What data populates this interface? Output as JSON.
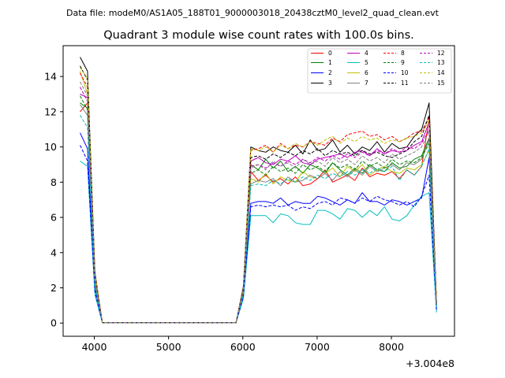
{
  "file_label": "Data file: modeM0/AS1A05_188T01_9000003018_20438cztM0_level2_quad_clean.evt",
  "chart_data": {
    "type": "line",
    "title": "Quadrant 3 module wise count rates with 100.0s bins.",
    "xlabel": "",
    "ylabel": "",
    "x_offset_label": "+3.004e8",
    "xlim": [
      3580,
      8850
    ],
    "ylim": [
      -0.75,
      15.75
    ],
    "x_ticks": [
      4000,
      5000,
      6000,
      7000,
      8000
    ],
    "y_ticks": [
      0,
      2,
      4,
      6,
      8,
      10,
      12,
      14
    ],
    "grid": false,
    "legend_position": "top-right",
    "x": [
      3808,
      3908,
      4008,
      4108,
      4208,
      4308,
      4408,
      4508,
      4608,
      4708,
      4808,
      4908,
      5008,
      5108,
      5208,
      5308,
      5408,
      5508,
      5608,
      5708,
      5808,
      5908,
      6008,
      6108,
      6208,
      6308,
      6408,
      6508,
      6608,
      6708,
      6808,
      6908,
      7008,
      7108,
      7208,
      7308,
      7408,
      7508,
      7608,
      7708,
      7808,
      7908,
      8008,
      8108,
      8208,
      8308,
      8408,
      8508,
      8608
    ],
    "series": [
      {
        "name": "0",
        "color": "#ff0000",
        "dash": "solid",
        "values": [
          12.0,
          12.5,
          2.6,
          0.02,
          0.02,
          0.02,
          0.02,
          0.02,
          0.02,
          0.02,
          0.02,
          0.02,
          0.02,
          0.02,
          0.02,
          0.02,
          0.02,
          0.02,
          0.02,
          0.02,
          0.02,
          0.02,
          1.8,
          8.6,
          8.1,
          8.4,
          8.0,
          8.2,
          7.9,
          8.3,
          7.8,
          7.9,
          8.2,
          8.7,
          8.0,
          8.2,
          8.4,
          8.1,
          8.8,
          8.3,
          8.5,
          8.4,
          8.6,
          8.2,
          8.7,
          8.4,
          8.9,
          11.6,
          1.1
        ]
      },
      {
        "name": "1",
        "color": "#008000",
        "dash": "solid",
        "values": [
          12.5,
          12.2,
          2.4,
          0.02,
          0.02,
          0.02,
          0.02,
          0.02,
          0.02,
          0.02,
          0.02,
          0.02,
          0.02,
          0.02,
          0.02,
          0.02,
          0.02,
          0.02,
          0.02,
          0.02,
          0.02,
          0.02,
          1.9,
          9.0,
          8.7,
          9.3,
          8.8,
          9.2,
          8.6,
          8.9,
          8.5,
          9.0,
          8.8,
          8.5,
          9.1,
          8.7,
          8.4,
          8.8,
          8.5,
          9.0,
          8.7,
          8.6,
          9.1,
          8.8,
          8.9,
          9.3,
          9.5,
          10.5,
          1.0
        ]
      },
      {
        "name": "2",
        "color": "#0000ff",
        "dash": "solid",
        "values": [
          10.8,
          9.9,
          2.0,
          0.02,
          0.02,
          0.02,
          0.02,
          0.02,
          0.02,
          0.02,
          0.02,
          0.02,
          0.02,
          0.02,
          0.02,
          0.02,
          0.02,
          0.02,
          0.02,
          0.02,
          0.02,
          0.02,
          1.6,
          6.8,
          6.9,
          6.9,
          6.8,
          7.1,
          6.7,
          6.9,
          6.8,
          6.8,
          7.2,
          7.1,
          6.9,
          6.7,
          7.0,
          6.8,
          7.4,
          6.9,
          6.9,
          6.7,
          7.0,
          6.9,
          6.7,
          6.9,
          7.1,
          9.4,
          0.8
        ]
      },
      {
        "name": "3",
        "color": "#000000",
        "dash": "solid",
        "values": [
          15.1,
          14.3,
          2.9,
          0.02,
          0.02,
          0.02,
          0.02,
          0.02,
          0.02,
          0.02,
          0.02,
          0.02,
          0.02,
          0.02,
          0.02,
          0.02,
          0.02,
          0.02,
          0.02,
          0.02,
          0.02,
          0.02,
          2.1,
          10.0,
          9.8,
          9.7,
          10.0,
          9.8,
          9.7,
          10.1,
          9.6,
          10.4,
          9.8,
          9.9,
          10.4,
          9.7,
          10.1,
          9.6,
          10.0,
          9.8,
          10.3,
          9.7,
          10.2,
          9.9,
          10.0,
          10.6,
          11.0,
          12.5,
          1.2
        ]
      },
      {
        "name": "4",
        "color": "#bf00bf",
        "dash": "solid",
        "values": [
          13.0,
          12.8,
          2.7,
          0.02,
          0.02,
          0.02,
          0.02,
          0.02,
          0.02,
          0.02,
          0.02,
          0.02,
          0.02,
          0.02,
          0.02,
          0.02,
          0.02,
          0.02,
          0.02,
          0.02,
          0.02,
          0.02,
          2.0,
          9.2,
          9.4,
          9.1,
          9.0,
          9.3,
          9.2,
          9.5,
          9.1,
          9.0,
          9.3,
          9.4,
          9.5,
          9.6,
          9.4,
          9.7,
          9.8,
          9.5,
          9.9,
          9.6,
          9.8,
          9.7,
          9.8,
          10.1,
          10.3,
          11.4,
          1.1
        ]
      },
      {
        "name": "5",
        "color": "#00bfbf",
        "dash": "solid",
        "values": [
          9.2,
          8.9,
          1.6,
          0.02,
          0.02,
          0.02,
          0.02,
          0.02,
          0.02,
          0.02,
          0.02,
          0.02,
          0.02,
          0.02,
          0.02,
          0.02,
          0.02,
          0.02,
          0.02,
          0.02,
          0.02,
          0.02,
          1.4,
          6.1,
          6.1,
          6.1,
          5.7,
          6.2,
          6.1,
          5.7,
          5.6,
          5.6,
          6.4,
          6.4,
          6.2,
          5.9,
          6.5,
          6.4,
          6.0,
          6.4,
          6.1,
          6.6,
          5.9,
          5.8,
          6.1,
          6.7,
          7.2,
          7.4,
          0.6
        ]
      },
      {
        "name": "6",
        "color": "#bfbf00",
        "dash": "solid",
        "values": [
          14.3,
          13.0,
          2.5,
          0.02,
          0.02,
          0.02,
          0.02,
          0.02,
          0.02,
          0.02,
          0.02,
          0.02,
          0.02,
          0.02,
          0.02,
          0.02,
          0.02,
          0.02,
          0.02,
          0.02,
          0.02,
          0.02,
          1.9,
          8.2,
          8.0,
          8.5,
          7.9,
          8.3,
          8.1,
          8.0,
          8.6,
          8.3,
          8.2,
          8.5,
          8.8,
          8.3,
          8.9,
          8.6,
          9.0,
          8.4,
          8.7,
          8.9,
          8.6,
          8.5,
          8.8,
          8.7,
          9.0,
          9.8,
          1.0
        ]
      },
      {
        "name": "7",
        "color": "#808080",
        "dash": "solid",
        "values": [
          12.4,
          11.8,
          2.2,
          0.02,
          0.02,
          0.02,
          0.02,
          0.02,
          0.02,
          0.02,
          0.02,
          0.02,
          0.02,
          0.02,
          0.02,
          0.02,
          0.02,
          0.02,
          0.02,
          0.02,
          0.02,
          0.02,
          1.7,
          7.9,
          8.1,
          8.0,
          8.2,
          7.8,
          8.3,
          8.0,
          8.1,
          8.4,
          8.2,
          8.5,
          8.1,
          8.6,
          8.3,
          8.7,
          8.4,
          8.9,
          8.6,
          8.8,
          9.0,
          8.7,
          9.1,
          9.0,
          9.3,
          10.4,
          0.9
        ]
      },
      {
        "name": "8",
        "color": "#ff0000",
        "dash": "dashed",
        "values": [
          14.2,
          13.4,
          2.8,
          0.02,
          0.02,
          0.02,
          0.02,
          0.02,
          0.02,
          0.02,
          0.02,
          0.02,
          0.02,
          0.02,
          0.02,
          0.02,
          0.02,
          0.02,
          0.02,
          0.02,
          0.02,
          0.02,
          2.0,
          9.8,
          9.9,
          10.1,
          9.7,
          10.2,
          9.9,
          10.1,
          10.0,
          10.3,
          10.2,
          10.1,
          10.5,
          10.3,
          10.7,
          10.8,
          10.9,
          10.6,
          10.7,
          10.4,
          10.6,
          10.3,
          10.5,
          10.8,
          10.9,
          11.7,
          1.2
        ]
      },
      {
        "name": "9",
        "color": "#008000",
        "dash": "dashed",
        "values": [
          12.9,
          12.1,
          2.4,
          0.02,
          0.02,
          0.02,
          0.02,
          0.02,
          0.02,
          0.02,
          0.02,
          0.02,
          0.02,
          0.02,
          0.02,
          0.02,
          0.02,
          0.02,
          0.02,
          0.02,
          0.02,
          0.02,
          1.8,
          8.5,
          8.7,
          8.4,
          8.9,
          8.6,
          8.8,
          8.5,
          9.0,
          8.7,
          8.9,
          8.6,
          9.1,
          8.8,
          9.0,
          8.7,
          9.2,
          8.9,
          9.1,
          8.8,
          9.3,
          9.0,
          9.2,
          9.1,
          9.4,
          10.2,
          1.0
        ]
      },
      {
        "name": "10",
        "color": "#0000ff",
        "dash": "dashed",
        "values": [
          10.1,
          9.2,
          1.8,
          0.02,
          0.02,
          0.02,
          0.02,
          0.02,
          0.02,
          0.02,
          0.02,
          0.02,
          0.02,
          0.02,
          0.02,
          0.02,
          0.02,
          0.02,
          0.02,
          0.02,
          0.02,
          0.02,
          1.5,
          6.6,
          6.7,
          6.6,
          6.7,
          6.6,
          6.7,
          6.4,
          6.6,
          6.5,
          6.8,
          6.9,
          6.7,
          7.1,
          7.0,
          6.8,
          7.1,
          6.9,
          7.2,
          7.0,
          6.9,
          6.7,
          6.9,
          6.6,
          7.2,
          8.4,
          0.7
        ]
      },
      {
        "name": "11",
        "color": "#000000",
        "dash": "dashed",
        "values": [
          14.6,
          13.8,
          2.7,
          0.02,
          0.02,
          0.02,
          0.02,
          0.02,
          0.02,
          0.02,
          0.02,
          0.02,
          0.02,
          0.02,
          0.02,
          0.02,
          0.02,
          0.02,
          0.02,
          0.02,
          0.02,
          0.02,
          2.0,
          9.4,
          9.5,
          9.3,
          9.6,
          9.4,
          9.7,
          9.5,
          9.8,
          9.6,
          9.9,
          9.5,
          9.8,
          9.6,
          9.7,
          9.5,
          9.8,
          9.6,
          9.7,
          9.5,
          9.4,
          9.6,
          9.8,
          10.3,
          10.6,
          11.8,
          1.1
        ]
      },
      {
        "name": "12",
        "color": "#bf00bf",
        "dash": "dashed",
        "values": [
          13.4,
          12.6,
          2.6,
          0.02,
          0.02,
          0.02,
          0.02,
          0.02,
          0.02,
          0.02,
          0.02,
          0.02,
          0.02,
          0.02,
          0.02,
          0.02,
          0.02,
          0.02,
          0.02,
          0.02,
          0.02,
          0.02,
          1.9,
          8.9,
          9.0,
          8.8,
          9.1,
          8.9,
          9.2,
          9.0,
          9.3,
          9.1,
          9.4,
          9.2,
          9.5,
          9.3,
          9.6,
          9.4,
          9.7,
          9.5,
          9.8,
          9.6,
          9.9,
          9.7,
          10.0,
          9.9,
          10.2,
          11.0,
          1.0
        ]
      },
      {
        "name": "13",
        "color": "#00bfbf",
        "dash": "dashed",
        "values": [
          11.8,
          11.1,
          2.1,
          0.02,
          0.02,
          0.02,
          0.02,
          0.02,
          0.02,
          0.02,
          0.02,
          0.02,
          0.02,
          0.02,
          0.02,
          0.02,
          0.02,
          0.02,
          0.02,
          0.02,
          0.02,
          0.02,
          1.6,
          7.8,
          7.9,
          7.8,
          8.1,
          7.9,
          8.2,
          8.0,
          8.3,
          8.1,
          8.4,
          8.2,
          8.5,
          8.3,
          8.6,
          8.4,
          8.7,
          8.5,
          8.8,
          8.6,
          8.9,
          8.1,
          8.7,
          8.4,
          8.9,
          9.9,
          0.9
        ]
      },
      {
        "name": "14",
        "color": "#bfbf00",
        "dash": "dashed",
        "values": [
          14.5,
          13.9,
          2.8,
          0.02,
          0.02,
          0.02,
          0.02,
          0.02,
          0.02,
          0.02,
          0.02,
          0.02,
          0.02,
          0.02,
          0.02,
          0.02,
          0.02,
          0.02,
          0.02,
          0.02,
          0.02,
          0.02,
          2.0,
          9.9,
          9.8,
          10.0,
          9.7,
          10.1,
          9.9,
          10.2,
          10.0,
          10.3,
          10.1,
          10.4,
          10.6,
          10.2,
          10.5,
          10.3,
          10.6,
          10.4,
          10.5,
          10.2,
          10.4,
          10.3,
          10.5,
          10.6,
          10.8,
          11.5,
          1.1
        ]
      },
      {
        "name": "15",
        "color": "#808080",
        "dash": "dashed",
        "values": [
          13.7,
          12.9,
          2.5,
          0.02,
          0.02,
          0.02,
          0.02,
          0.02,
          0.02,
          0.02,
          0.02,
          0.02,
          0.02,
          0.02,
          0.02,
          0.02,
          0.02,
          0.02,
          0.02,
          0.02,
          0.02,
          0.02,
          1.9,
          8.8,
          9.0,
          8.7,
          9.2,
          8.9,
          9.1,
          8.8,
          9.3,
          9.0,
          9.2,
          8.9,
          9.4,
          9.1,
          9.3,
          9.0,
          9.5,
          9.2,
          9.4,
          9.1,
          9.6,
          9.3,
          9.5,
          9.7,
          10.0,
          10.9,
          1.0
        ]
      }
    ]
  }
}
